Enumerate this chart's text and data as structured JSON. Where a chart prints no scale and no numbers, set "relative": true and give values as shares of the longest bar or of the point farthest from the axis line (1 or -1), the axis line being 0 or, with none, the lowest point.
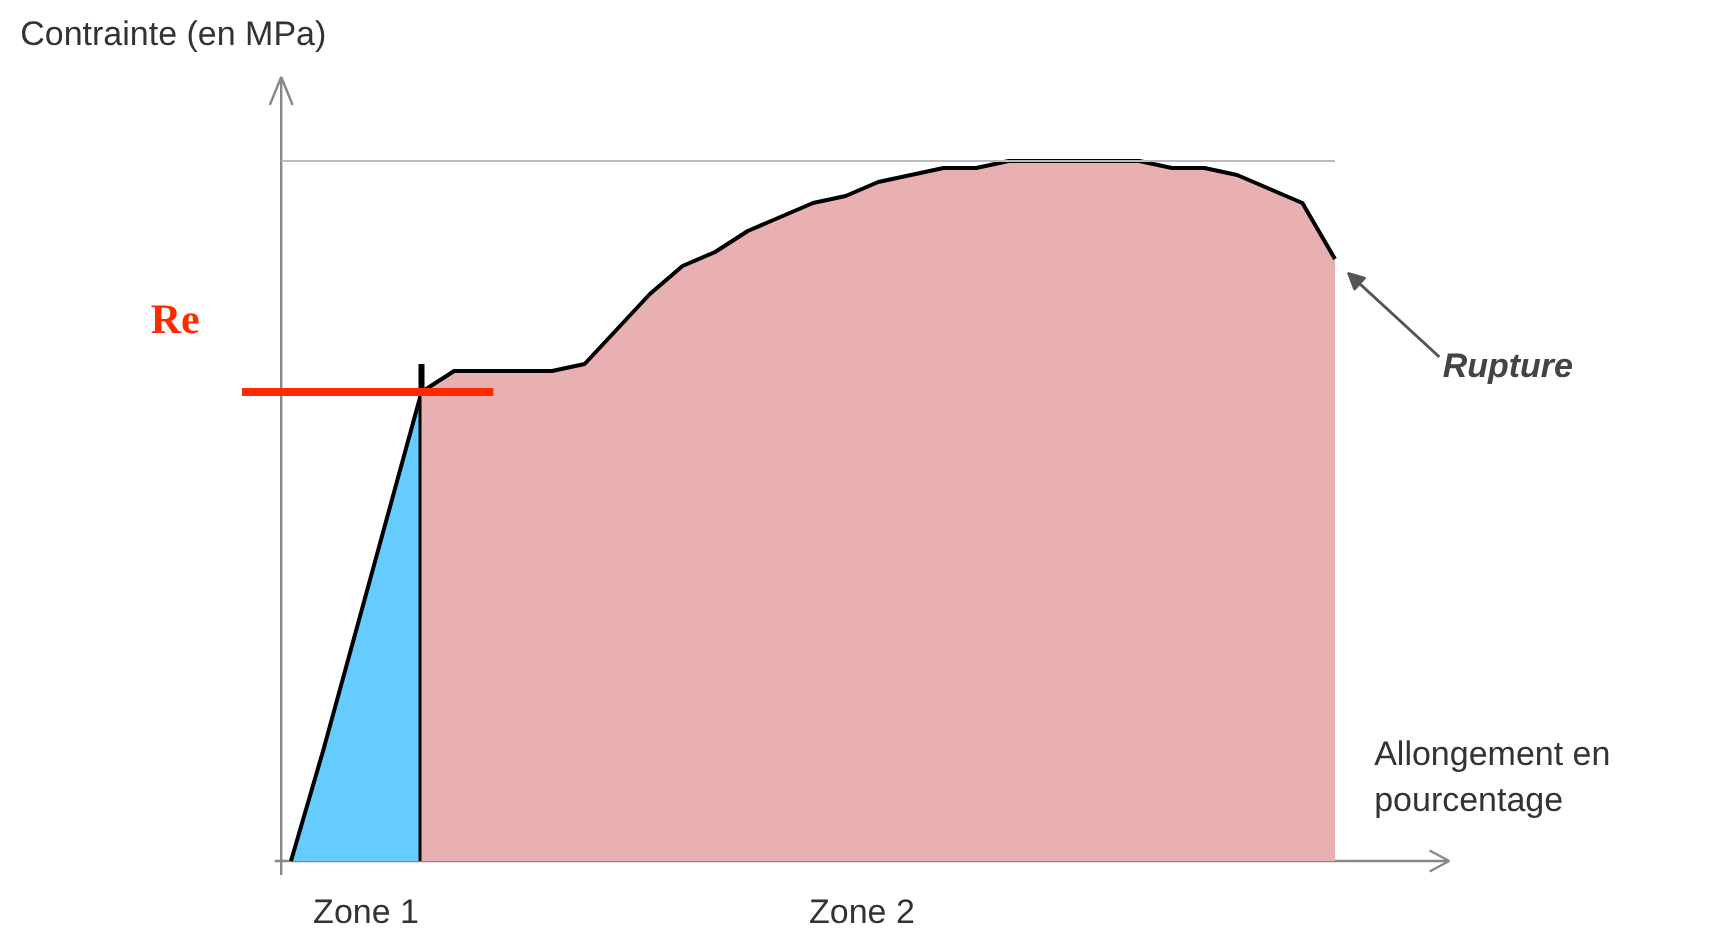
{
  "chart_data": {
    "type": "area",
    "relative": true,
    "xlabel": "Allongement en pourcentage",
    "ylabel": "Contrainte (en MPa)",
    "categories": [
      null,
      null,
      null,
      null,
      null,
      null,
      null,
      null,
      null,
      null,
      null,
      null,
      null,
      null,
      null,
      null,
      null,
      null,
      null,
      null,
      null,
      null,
      null,
      null,
      null,
      null,
      null,
      null,
      null,
      null,
      null,
      null,
      null
    ],
    "series": [
      {
        "color": "#66ccff",
        "values": [
          0,
          0.16,
          0.33,
          0.5,
          0.67,
          null,
          null,
          null,
          null,
          null,
          null,
          null,
          null,
          null,
          null,
          null,
          null,
          null,
          null,
          null,
          null,
          null,
          null,
          null,
          null,
          null,
          null,
          null,
          null,
          null,
          null,
          null,
          null
        ]
      },
      {
        "color": "#e8b0b0",
        "values": [
          null,
          null,
          null,
          null,
          0.67,
          0.7,
          0.7,
          0.7,
          0.7,
          0.71,
          0.76,
          0.81,
          0.85,
          0.87,
          0.9,
          0.92,
          0.94,
          0.95,
          0.97,
          0.98,
          0.99,
          0.99,
          1.0,
          1.0,
          1.0,
          1.0,
          1.0,
          0.99,
          0.99,
          0.98,
          0.96,
          0.94,
          0.86
        ]
      }
    ],
    "ref_lines": [
      {
        "axis": "y",
        "value": 0.67,
        "label": "Re",
        "color": "#ff2a00"
      },
      {
        "axis": "y",
        "value": 1.0,
        "label": null,
        "color": "#bbbbbb"
      }
    ],
    "annotations": [
      "Zone 1",
      "Zone 2",
      "Rupture"
    ],
    "grid": false
  }
}
